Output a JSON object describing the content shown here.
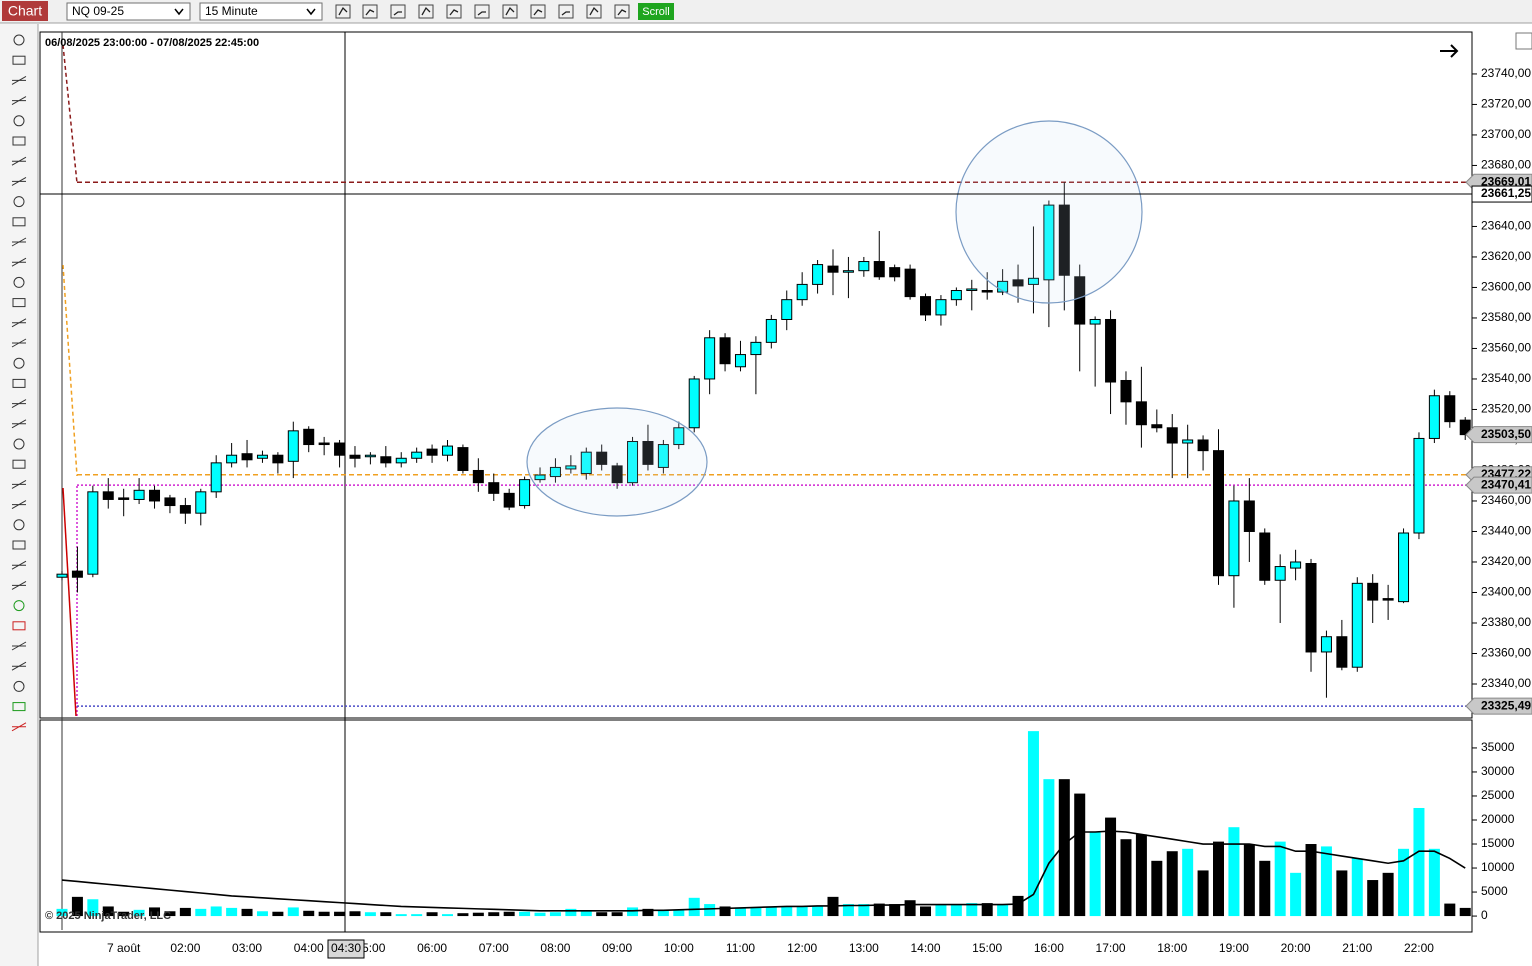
{
  "toolbar": {
    "tab": "Chart",
    "instrument": "NQ 09-25",
    "interval": "15 Minute",
    "scroll": "Scroll"
  },
  "chart_data": [
    {
      "type": "candlestick",
      "title": "06/08/2025 23:00:00 - 07/08/2025 22:45:00",
      "categories": [
        null,
        null,
        null,
        null,
        "7 août",
        null,
        null,
        null,
        "02:00",
        null,
        null,
        null,
        "03:00",
        null,
        null,
        null,
        "04:00",
        null,
        null,
        null,
        "05:00",
        null,
        null,
        null,
        "06:00",
        null,
        null,
        null,
        "07:00",
        null,
        null,
        null,
        "08:00",
        null,
        null,
        null,
        "09:00",
        null,
        null,
        null,
        "10:00",
        null,
        null,
        null,
        "11:00",
        null,
        null,
        null,
        "12:00",
        null,
        null,
        null,
        "13:00",
        null,
        null,
        null,
        "14:00",
        null,
        null,
        null,
        "15:00",
        null,
        null,
        null,
        "16:00",
        null,
        null,
        null,
        "17:00",
        null,
        null,
        null,
        "18:00",
        null,
        null,
        null,
        "19:00",
        null,
        null,
        null,
        "20:00",
        null,
        null,
        null,
        "21:00",
        null,
        null,
        null,
        "22:00",
        null,
        null,
        null
      ],
      "open": [
        23410,
        23414,
        23412,
        23466,
        23462,
        23461,
        23467,
        23462,
        23457,
        23452,
        23466,
        23485,
        23491,
        23488,
        23490,
        23486,
        23507,
        23498,
        23498,
        23490,
        23489,
        23489,
        23485,
        23488,
        23494,
        23490,
        23495,
        23480,
        23472,
        23465,
        23457,
        23474,
        23476,
        23481,
        23478,
        23492,
        23483,
        23472,
        23499,
        23482,
        23497,
        23508,
        23540,
        23567,
        23548,
        23556,
        23564,
        23579,
        23592,
        23602,
        23614,
        23610,
        23611,
        23617,
        23613,
        23612,
        23594,
        23582,
        23592,
        23598,
        23598,
        23597,
        23605,
        23602,
        23605,
        23654,
        23607,
        23576,
        23579,
        23539,
        23525,
        23510,
        23508,
        23498,
        23500,
        23493,
        23411,
        23460,
        23439,
        23408,
        23416,
        23419,
        23361,
        23371,
        23351,
        23406,
        23396,
        23394,
        23439,
        23501,
        23529,
        23513
      ],
      "high": [
        23414,
        23430,
        23470,
        23475,
        23468,
        23475,
        23470,
        23464,
        23462,
        23468,
        23490,
        23498,
        23500,
        23493,
        23492,
        23512,
        23509,
        23502,
        23500,
        23496,
        23492,
        23496,
        23492,
        23495,
        23497,
        23500,
        23497,
        23488,
        23478,
        23468,
        23476,
        23482,
        23488,
        23490,
        23495,
        23497,
        23485,
        23502,
        23510,
        23500,
        23512,
        23542,
        23572,
        23570,
        23565,
        23568,
        23582,
        23598,
        23610,
        23618,
        23625,
        23620,
        23620,
        23637,
        23615,
        23615,
        23596,
        23595,
        23600,
        23605,
        23610,
        23612,
        23615,
        23640,
        23657,
        23669,
        23615,
        23581,
        23585,
        23545,
        23548,
        23520,
        23517,
        23510,
        23503,
        23507,
        23470,
        23475,
        23442,
        23425,
        23428,
        23422,
        23375,
        23382,
        23410,
        23412,
        23405,
        23442,
        23505,
        23533,
        23532,
        23515
      ],
      "low": [
        23408,
        23400,
        23410,
        23455,
        23450,
        23458,
        23455,
        23452,
        23445,
        23444,
        23462,
        23482,
        23482,
        23485,
        23478,
        23475,
        23492,
        23490,
        23482,
        23482,
        23484,
        23482,
        23482,
        23485,
        23485,
        23486,
        23478,
        23466,
        23460,
        23454,
        23455,
        23472,
        23472,
        23478,
        23474,
        23480,
        23468,
        23470,
        23480,
        23478,
        23494,
        23505,
        23530,
        23545,
        23545,
        23530,
        23560,
        23572,
        23588,
        23596,
        23595,
        23593,
        23607,
        23605,
        23604,
        23592,
        23578,
        23575,
        23588,
        23585,
        23592,
        23595,
        23590,
        23583,
        23574,
        23585,
        23545,
        23535,
        23517,
        23510,
        23495,
        23505,
        23475,
        23475,
        23480,
        23405,
        23390,
        23420,
        23405,
        23380,
        23408,
        23348,
        23331,
        23349,
        23348,
        23380,
        23382,
        23393,
        23435,
        23498,
        23508,
        23500
      ],
      "close": [
        23412,
        23410,
        23466,
        23461,
        23461,
        23467,
        23460,
        23457,
        23452,
        23466,
        23485,
        23490,
        23487,
        23490,
        23485,
        23506,
        23497,
        23497,
        23490,
        23488,
        23490,
        23485,
        23488,
        23492,
        23490,
        23496,
        23480,
        23472,
        23465,
        23456,
        23474,
        23477,
        23482,
        23483,
        23492,
        23484,
        23472,
        23499,
        23484,
        23497,
        23508,
        23540,
        23567,
        23550,
        23556,
        23564,
        23579,
        23592,
        23602,
        23615,
        23610,
        23611,
        23617,
        23607,
        23607,
        23594,
        23582,
        23592,
        23598,
        23599,
        23597,
        23604,
        23601,
        23606,
        23654,
        23608,
        23576,
        23579,
        23538,
        23525,
        23510,
        23508,
        23498,
        23500,
        23493,
        23411,
        23460,
        23440,
        23408,
        23417,
        23420,
        23361,
        23371,
        23351,
        23406,
        23395,
        23395,
        23439,
        23501,
        23529,
        23512,
        23503.5
      ],
      "up_color": "#00ffff",
      "down_color": "#000000",
      "ylim": [
        23317.7,
        23767.5
      ],
      "yticks": [
        {
          "value": 23340,
          "label": "23340,00"
        },
        {
          "value": 23360,
          "label": "23360,00"
        },
        {
          "value": 23380,
          "label": "23380,00"
        },
        {
          "value": 23400,
          "label": "23400,00"
        },
        {
          "value": 23420,
          "label": "23420,00"
        },
        {
          "value": 23440,
          "label": "23440,00"
        },
        {
          "value": 23460,
          "label": "23460,00"
        },
        {
          "value": 23480,
          "label": "23480,00"
        },
        {
          "value": 23500,
          "label": "23500,00"
        },
        {
          "value": 23520,
          "label": "23520,00"
        },
        {
          "value": 23540,
          "label": "23540,00"
        },
        {
          "value": 23560,
          "label": "23560,00"
        },
        {
          "value": 23580,
          "label": "23580,00"
        },
        {
          "value": 23600,
          "label": "23600,00"
        },
        {
          "value": 23620,
          "label": "23620,00"
        },
        {
          "value": 23640,
          "label": "23640,00"
        },
        {
          "value": 23660,
          "label": "23660,00"
        },
        {
          "value": 23680,
          "label": "23680,00"
        },
        {
          "value": 23700,
          "label": "23700,00"
        },
        {
          "value": 23720,
          "label": "23720,00"
        },
        {
          "value": 23740,
          "label": "23740,00"
        }
      ],
      "levels": [
        {
          "value": 23669.01,
          "label": "23669,01",
          "color": "#8b1a1a",
          "style": "dashed"
        },
        {
          "value": 23477.22,
          "label": "23477,22",
          "color": "#f0a020",
          "style": "dashed"
        },
        {
          "value": 23470.41,
          "label": "23470,41",
          "color": "#d020d0",
          "style": "dotted"
        },
        {
          "value": 23325.49,
          "label": "23325,49",
          "color": "#4a4ac8",
          "style": "dotted"
        }
      ],
      "last_price": {
        "value": 23503.5,
        "label": "23503,50"
      },
      "crosshair": {
        "time": "04:30",
        "price": {
          "value": 23661.25,
          "label": "23661,25"
        }
      }
    },
    {
      "type": "bar",
      "annotation": "© 2025 NinjaTrader, LLC",
      "values": [
        1500,
        4000,
        3500,
        2000,
        900,
        1300,
        1800,
        1000,
        1700,
        1500,
        2000,
        1700,
        1500,
        1000,
        900,
        1800,
        1100,
        900,
        900,
        1000,
        800,
        800,
        400,
        400,
        800,
        400,
        600,
        700,
        800,
        900,
        900,
        700,
        800,
        1500,
        1000,
        800,
        800,
        1800,
        1500,
        1200,
        1200,
        3800,
        2500,
        2000,
        1800,
        1800,
        1800,
        2000,
        2000,
        2100,
        4000,
        2500,
        2500,
        2600,
        2500,
        3300,
        2000,
        2300,
        2500,
        2700,
        2700,
        2400,
        4200,
        38500,
        28500,
        28500,
        25500,
        17500,
        20500,
        16000,
        17000,
        11500,
        13500,
        14000,
        9500,
        15500,
        18500,
        15000,
        11500,
        15500,
        9000,
        15000,
        14500,
        9500,
        12000,
        7500,
        9000,
        14000,
        22500,
        14000,
        2600,
        1700
      ],
      "ma": [
        7500,
        7200,
        6900,
        6600,
        6300,
        6000,
        5700,
        5400,
        5100,
        4800,
        4500,
        4200,
        4000,
        3800,
        3600,
        3400,
        3200,
        3000,
        2800,
        2600,
        2400,
        2200,
        2000,
        1900,
        1800,
        1700,
        1600,
        1500,
        1400,
        1300,
        1200,
        1100,
        1100,
        1100,
        1100,
        1100,
        1100,
        1100,
        1200,
        1200,
        1300,
        1400,
        1500,
        1600,
        1700,
        1800,
        1900,
        2000,
        2000,
        2100,
        2100,
        2200,
        2200,
        2300,
        2300,
        2400,
        2400,
        2400,
        2400,
        2400,
        2400,
        2400,
        2500,
        4500,
        11000,
        15000,
        17500,
        17500,
        17700,
        17500,
        17000,
        16500,
        16000,
        15500,
        15000,
        15000,
        15000,
        15000,
        14500,
        14500,
        13500,
        13500,
        13000,
        12500,
        12000,
        11500,
        11000,
        11500,
        13500,
        13500,
        12000,
        10000
      ],
      "ma_color": "#000000",
      "ylim": [
        -2900,
        40400
      ],
      "yticks": [
        0,
        5000,
        10000,
        15000,
        20000,
        25000,
        30000,
        35000
      ]
    }
  ]
}
